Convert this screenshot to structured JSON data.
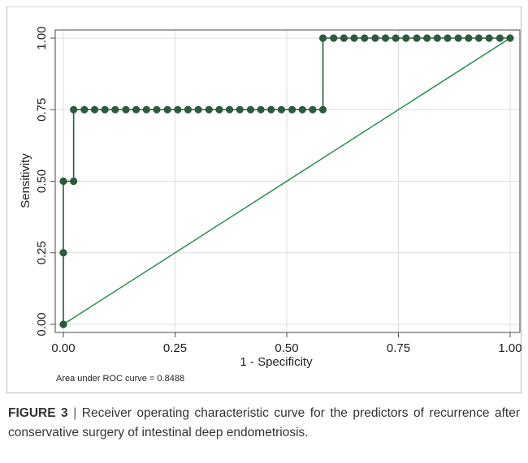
{
  "chart_data": {
    "type": "line",
    "title": "",
    "xlabel": "1 - Specificity",
    "ylabel": "Sensitivity",
    "xlim": [
      0,
      1
    ],
    "ylim": [
      0,
      1
    ],
    "xticks": [
      "0.00",
      "0.25",
      "0.50",
      "0.75",
      "1.00"
    ],
    "yticks": [
      "0.00",
      "0.25",
      "0.50",
      "0.75",
      "1.00"
    ],
    "grid": true,
    "legend": "none",
    "annotation": "Area under ROC curve = 0.8488",
    "colors": {
      "roc": "#2d5a3d",
      "reference": "#1e8a3e",
      "grid": "#dcdcdc"
    },
    "series": [
      {
        "kind": "roc",
        "x": [
          0,
          0,
          0,
          0.023,
          0.023,
          0.047,
          0.07,
          0.093,
          0.116,
          0.14,
          0.163,
          0.186,
          0.209,
          0.233,
          0.256,
          0.279,
          0.302,
          0.326,
          0.349,
          0.372,
          0.395,
          0.419,
          0.442,
          0.465,
          0.488,
          0.512,
          0.535,
          0.558,
          0.581,
          0.581,
          0.605,
          0.628,
          0.651,
          0.674,
          0.698,
          0.721,
          0.744,
          0.767,
          0.791,
          0.814,
          0.837,
          0.86,
          0.884,
          0.907,
          0.93,
          0.953,
          0.977,
          1.0
        ],
        "y": [
          0,
          0.25,
          0.5,
          0.5,
          0.75,
          0.75,
          0.75,
          0.75,
          0.75,
          0.75,
          0.75,
          0.75,
          0.75,
          0.75,
          0.75,
          0.75,
          0.75,
          0.75,
          0.75,
          0.75,
          0.75,
          0.75,
          0.75,
          0.75,
          0.75,
          0.75,
          0.75,
          0.75,
          0.75,
          1.0,
          1.0,
          1.0,
          1.0,
          1.0,
          1.0,
          1.0,
          1.0,
          1.0,
          1.0,
          1.0,
          1.0,
          1.0,
          1.0,
          1.0,
          1.0,
          1.0,
          1.0,
          1.0
        ]
      },
      {
        "kind": "reference",
        "x": [
          0,
          1
        ],
        "y": [
          0,
          1
        ]
      }
    ]
  },
  "caption": {
    "label": "FIGURE 3",
    "separator": "|",
    "text": "Receiver operating characteristic curve for the predictors of recurrence after conservative surgery of intestinal deep endometriosis."
  }
}
